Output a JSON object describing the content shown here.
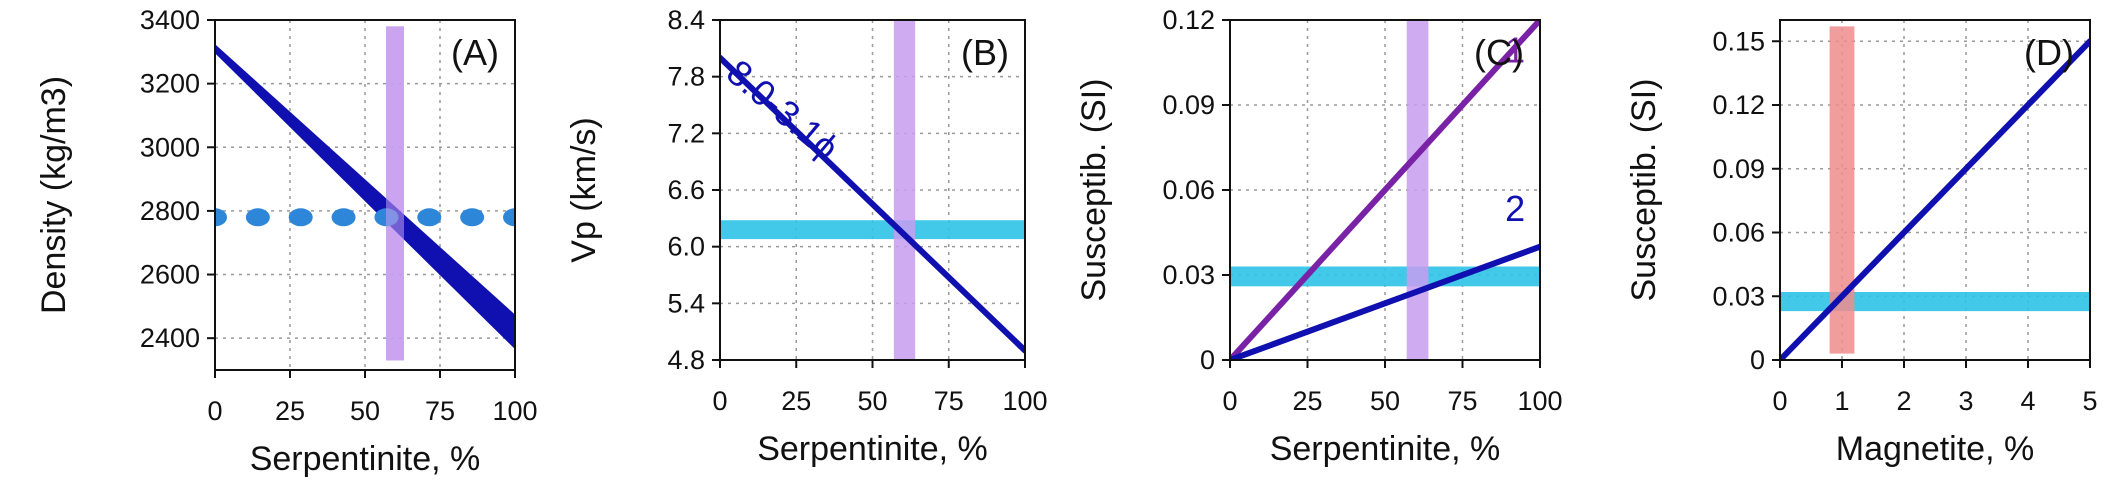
{
  "colors": {
    "blue": "#1010b0",
    "purple": "#7a22a6",
    "lavender": "#c79ef0",
    "cyan": "#2ec3e8",
    "pink": "#f08c8c",
    "dot_blue": "#2e86d8",
    "grid": "#9a9a9a"
  },
  "chart_data": [
    {
      "id": "A",
      "type": "area",
      "panel_label": "(A)",
      "xlabel": "Serpentinite, %",
      "ylabel": "Density (kg/m3)",
      "xlim": [
        0,
        100
      ],
      "ylim": [
        2300,
        3400
      ],
      "xticks": [
        0,
        25,
        50,
        75,
        100
      ],
      "yticks": [
        2400,
        2600,
        2800,
        3000,
        3200,
        3400
      ],
      "grid": true,
      "series": [
        {
          "kind": "band",
          "color": "blue",
          "x": [
            0,
            100
          ],
          "y_upper": [
            3320,
            2470
          ],
          "y_lower": [
            3300,
            2370
          ]
        }
      ],
      "hlines": [
        {
          "kind": "dotted",
          "y": 2780,
          "color": "dot_blue",
          "x": [
            0,
            100
          ]
        }
      ],
      "vbands": [
        {
          "x0": 57,
          "x1": 63,
          "y0": 2330,
          "y1": 3380,
          "color": "lavender"
        }
      ],
      "hbands": []
    },
    {
      "id": "B",
      "type": "line",
      "panel_label": "(B)",
      "xlabel": "Serpentinite, %",
      "ylabel": "Vp (km/s)",
      "xlim": [
        0,
        100
      ],
      "ylim": [
        4.8,
        8.4
      ],
      "xticks": [
        0,
        25,
        50,
        75,
        100
      ],
      "yticks": [
        4.8,
        5.4,
        6.0,
        6.6,
        7.2,
        7.8,
        8.4
      ],
      "ytick_labels": [
        "4.8",
        "5.4",
        "6.0",
        "6.6",
        "7.2",
        "7.8",
        "8.4"
      ],
      "grid": true,
      "series": [
        {
          "kind": "line",
          "color": "blue",
          "x": [
            0,
            100
          ],
          "y": [
            8.0,
            4.9
          ]
        }
      ],
      "annotations": [
        {
          "text": "8.0-3.1ϕ",
          "x": 18,
          "y": 7.35,
          "color": "blue",
          "rotate": 40
        }
      ],
      "vbands": [
        {
          "x0": 57,
          "x1": 64,
          "y0": 4.8,
          "y1": 8.4,
          "color": "lavender"
        }
      ],
      "hbands": [
        {
          "y0": 6.08,
          "y1": 6.28,
          "x0": 0,
          "x1": 100,
          "color": "cyan"
        }
      ]
    },
    {
      "id": "C",
      "type": "line",
      "panel_label": "(C)",
      "xlabel": "Serpentinite, %",
      "ylabel": "Susceptib. (SI)",
      "xlim": [
        0,
        100
      ],
      "ylim": [
        0,
        0.12
      ],
      "xticks": [
        0,
        25,
        50,
        75,
        100
      ],
      "yticks": [
        0,
        0.03,
        0.06,
        0.09,
        0.12
      ],
      "ytick_labels": [
        "0",
        "0.03",
        "0.06",
        "0.09",
        "0.12"
      ],
      "grid": true,
      "series": [
        {
          "kind": "line",
          "color": "purple",
          "x": [
            0,
            100
          ],
          "y": [
            0,
            0.12
          ]
        },
        {
          "kind": "line",
          "color": "blue",
          "x": [
            0,
            100
          ],
          "y": [
            0,
            0.04
          ]
        }
      ],
      "annotations": [
        {
          "text": "1",
          "x": 92,
          "y": 0.105,
          "color": "purple",
          "rotate": 0
        },
        {
          "text": "2",
          "x": 92,
          "y": 0.049,
          "color": "blue",
          "rotate": 0
        }
      ],
      "vbands": [
        {
          "x0": 57,
          "x1": 64,
          "y0": 0,
          "y1": 0.12,
          "color": "lavender"
        }
      ],
      "hbands": [
        {
          "y0": 0.026,
          "y1": 0.033,
          "x0": 0,
          "x1": 100,
          "color": "cyan"
        }
      ]
    },
    {
      "id": "D",
      "type": "line",
      "panel_label": "(D)",
      "xlabel": "Magnetite, %",
      "ylabel": "Susceptib. (SI)",
      "xlim": [
        0,
        5
      ],
      "ylim": [
        0,
        0.16
      ],
      "xticks": [
        0,
        1,
        2,
        3,
        4,
        5
      ],
      "yticks": [
        0,
        0.03,
        0.06,
        0.09,
        0.12,
        0.15
      ],
      "ytick_labels": [
        "0",
        "0.03",
        "0.06",
        "0.09",
        "0.12",
        "0.15"
      ],
      "grid": true,
      "series": [
        {
          "kind": "line",
          "color": "blue",
          "x": [
            0,
            5
          ],
          "y": [
            0,
            0.15
          ]
        }
      ],
      "vbands": [
        {
          "x0": 0.8,
          "x1": 1.2,
          "y0": 0.003,
          "y1": 0.157,
          "color": "pink"
        }
      ],
      "hbands": [
        {
          "y0": 0.023,
          "y1": 0.032,
          "x0": 0,
          "x1": 5,
          "color": "cyan"
        }
      ]
    }
  ]
}
